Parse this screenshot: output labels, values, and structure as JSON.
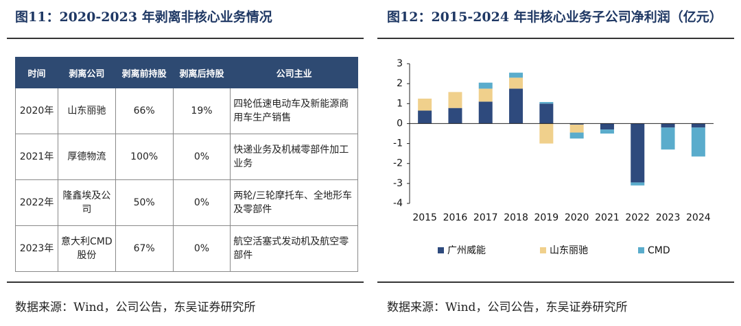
{
  "left": {
    "title": "图11：2020-2023 年剥离非核心业务情况",
    "table": {
      "header": [
        "时间",
        "剥离公司",
        "剥离前持股",
        "剥离后持股",
        "公司主业"
      ],
      "rows": [
        [
          "2020年",
          "山东丽驰",
          "66%",
          "19%",
          "四轮低速电动车及新能源商用车生产销售"
        ],
        [
          "2021年",
          "厚德物流",
          "100%",
          "0%",
          "快递业务及机械零部件加工业务"
        ],
        [
          "2022年",
          "隆鑫埃及公司",
          "50%",
          "0%",
          "两轮/三轮摩托车、全地形车及零部件"
        ],
        [
          "2023年",
          "意大利CMD股份",
          "67%",
          "0%",
          "航空活塞式发动机及航空零部件"
        ]
      ]
    },
    "source": "数据来源：Wind，公司公告，东吴证券研究所"
  },
  "chart_data": {
    "type": "stacked_bar",
    "title": "图12：2015-2024 年非核心业务子公司净利润（亿元）",
    "categories": [
      "2015",
      "2016",
      "2017",
      "2018",
      "2019",
      "2020",
      "2021",
      "2022",
      "2023",
      "2024"
    ],
    "series": [
      {
        "name": "广州威能",
        "color": "#2e4a7d",
        "values": [
          0.65,
          0.78,
          1.1,
          1.75,
          1.0,
          -0.05,
          -0.3,
          -2.95,
          -0.2,
          -0.2
        ]
      },
      {
        "name": "山东丽驰",
        "color": "#f0d08c",
        "values": [
          0.6,
          0.8,
          0.65,
          0.55,
          -1.0,
          -0.4,
          0,
          0,
          0,
          0
        ]
      },
      {
        "name": "CMD",
        "color": "#5aaccc",
        "values": [
          0,
          0,
          0.3,
          0.25,
          0.08,
          -0.3,
          -0.2,
          -0.15,
          -1.1,
          -1.45
        ]
      }
    ],
    "ylim": [
      -4,
      3
    ],
    "yticks": [
      -4,
      -3,
      -2,
      -1,
      0,
      1,
      2,
      3
    ],
    "source": "数据来源：Wind，公司公告，东吴证券研究所"
  }
}
